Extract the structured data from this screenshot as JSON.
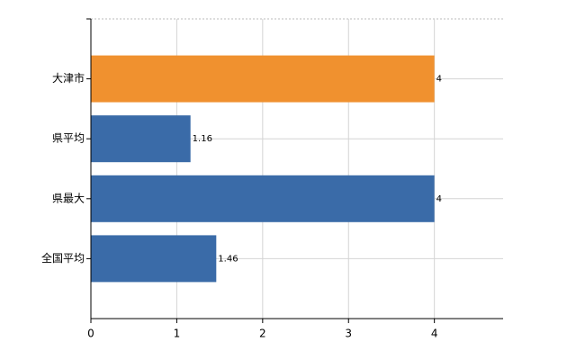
{
  "chart_data": {
    "type": "bar",
    "orientation": "horizontal",
    "categories": [
      "大津市",
      "県平均",
      "県最大",
      "全国平均"
    ],
    "values": [
      4,
      1.16,
      4,
      1.46
    ],
    "colors": [
      "#f0912f",
      "#3a6ba8",
      "#3a6ba8",
      "#3a6ba8"
    ],
    "xlim": [
      0,
      4.8
    ],
    "xticks": [
      0,
      1,
      2,
      3,
      4
    ],
    "grid": true
  }
}
